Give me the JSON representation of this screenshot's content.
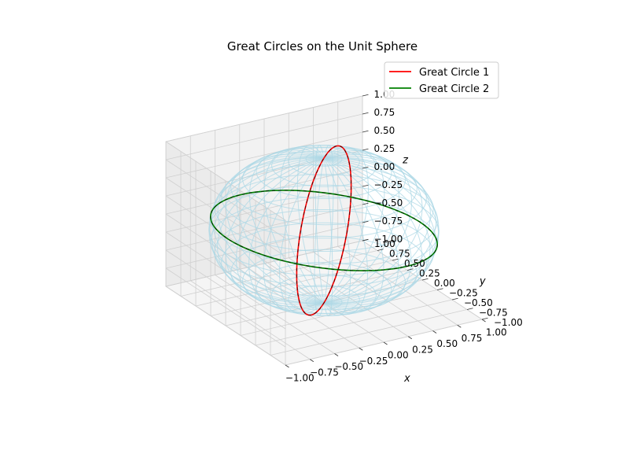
{
  "chart_data": {
    "type": "line",
    "projection": "3d",
    "title": "Great Circles on the Unit Sphere",
    "xlabel": "x",
    "ylabel": "y",
    "zlabel": "z",
    "xlim": [
      -1,
      1
    ],
    "ylim": [
      -1,
      1
    ],
    "zlim": [
      -1,
      1
    ],
    "xticks": [
      "−1.00",
      "−0.75",
      "−0.50",
      "−0.25",
      "0.00",
      "0.25",
      "0.50",
      "0.75",
      "1.00"
    ],
    "yticks": [
      "−1.00",
      "−0.75",
      "−0.50",
      "−0.25",
      "0.00",
      "0.25",
      "0.50",
      "0.75",
      "1.00"
    ],
    "zticks": [
      "−1.00",
      "−0.75",
      "−0.50",
      "−0.25",
      "0.00",
      "0.25",
      "0.50",
      "0.75",
      "1.00"
    ],
    "tick_values": [
      -1,
      -0.75,
      -0.5,
      -0.25,
      0,
      0.25,
      0.5,
      0.75,
      1
    ],
    "grid": true,
    "legend_position": "top-right",
    "surface": {
      "shape": "unit sphere wireframe",
      "color": "#add8e6"
    },
    "series": [
      {
        "name": "Great Circle 1",
        "color": "#ff0000",
        "normal": [
          1,
          -1,
          0
        ]
      },
      {
        "name": "Great Circle 2",
        "color": "#008000",
        "normal": [
          0.2,
          0,
          1
        ]
      }
    ]
  }
}
